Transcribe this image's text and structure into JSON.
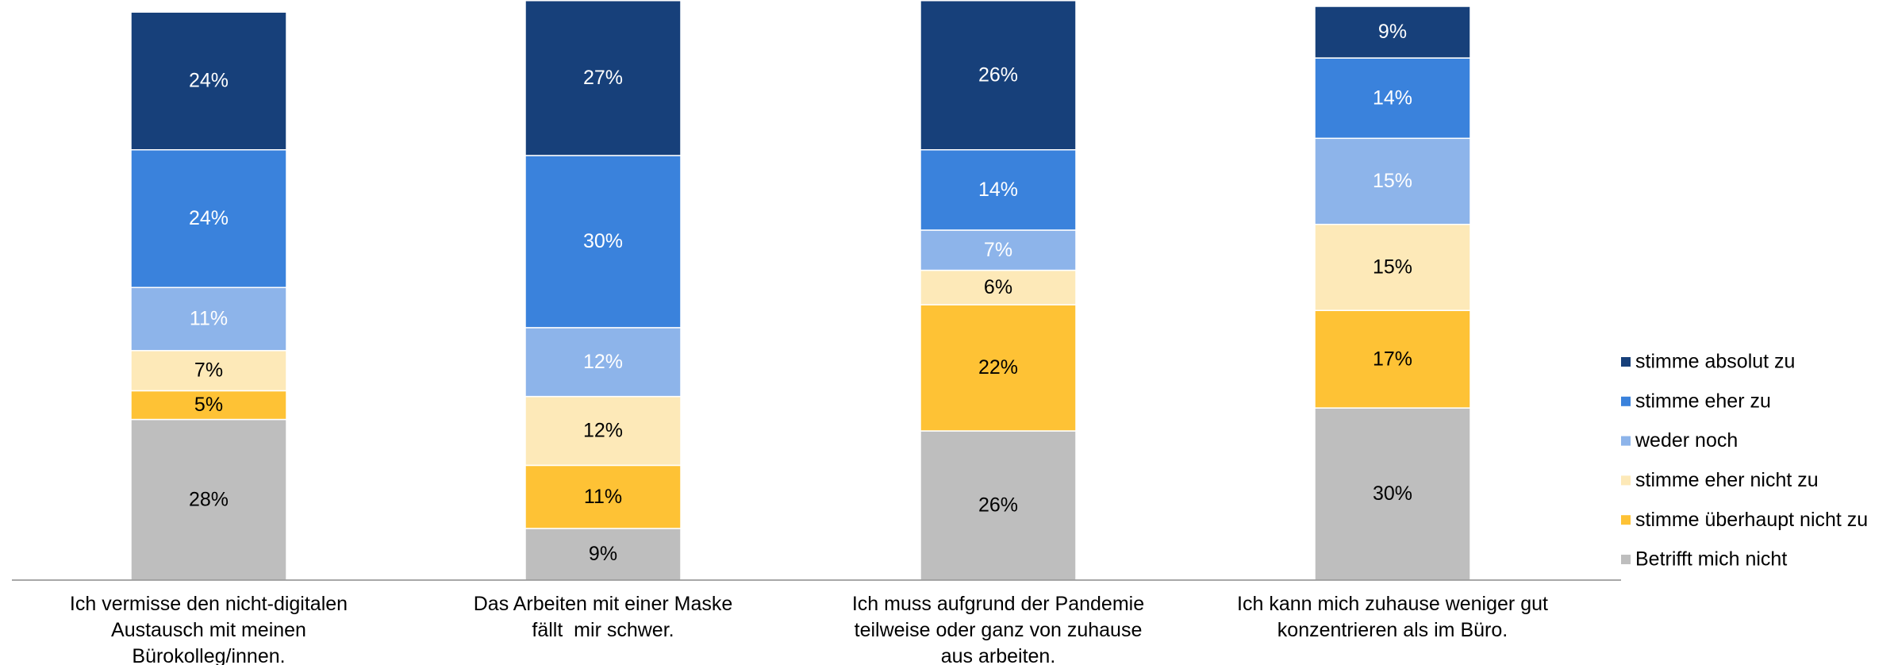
{
  "chart_data": {
    "type": "stacked_bar",
    "categories": [
      "Ich vermisse den nicht-digitalen\nAustausch mit meinen\nBürokolleg/innen.",
      "Das Arbeiten mit einer Maske\nfällt  mir schwer.",
      "Ich muss aufgrund der Pandemie\nteilweise oder ganz von zuhause\naus arbeiten.",
      "Ich kann mich zuhause weniger gut\nkonzentrieren als im Büro."
    ],
    "series": [
      {
        "name": "stimme absolut zu",
        "color": "#17407a",
        "label_color": "#ffffff",
        "values": [
          24,
          27,
          26,
          9
        ],
        "value_labels": [
          "24%",
          "27%",
          "26%",
          "9%"
        ]
      },
      {
        "name": "stimme eher zu",
        "color": "#3a82dc",
        "label_color": "#ffffff",
        "values": [
          24,
          30,
          14,
          14
        ],
        "value_labels": [
          "24%",
          "30%",
          "14%",
          "14%"
        ]
      },
      {
        "name": "weder noch",
        "color": "#8db4ea",
        "label_color": "#ffffff",
        "values": [
          11,
          12,
          7,
          15
        ],
        "value_labels": [
          "11%",
          "12%",
          "7%",
          "15%"
        ]
      },
      {
        "name": "stimme eher nicht zu",
        "color": "#fde9b8",
        "label_color": "#000000",
        "values": [
          7,
          12,
          6,
          15
        ],
        "value_labels": [
          "7%",
          "12%",
          "6%",
          "15%"
        ]
      },
      {
        "name": "stimme überhaupt nicht zu",
        "color": "#fec235",
        "label_color": "#000000",
        "values": [
          5,
          11,
          22,
          17
        ],
        "value_labels": [
          "5%",
          "11%",
          "22%",
          "17%"
        ]
      },
      {
        "name": "Betrifft mich nicht",
        "color": "#bebebe",
        "label_color": "#000000",
        "values": [
          28,
          9,
          26,
          30
        ],
        "value_labels": [
          "28%",
          "9%",
          "26%",
          "30%"
        ]
      }
    ],
    "ylim": [
      0,
      100
    ],
    "legend": "right"
  }
}
